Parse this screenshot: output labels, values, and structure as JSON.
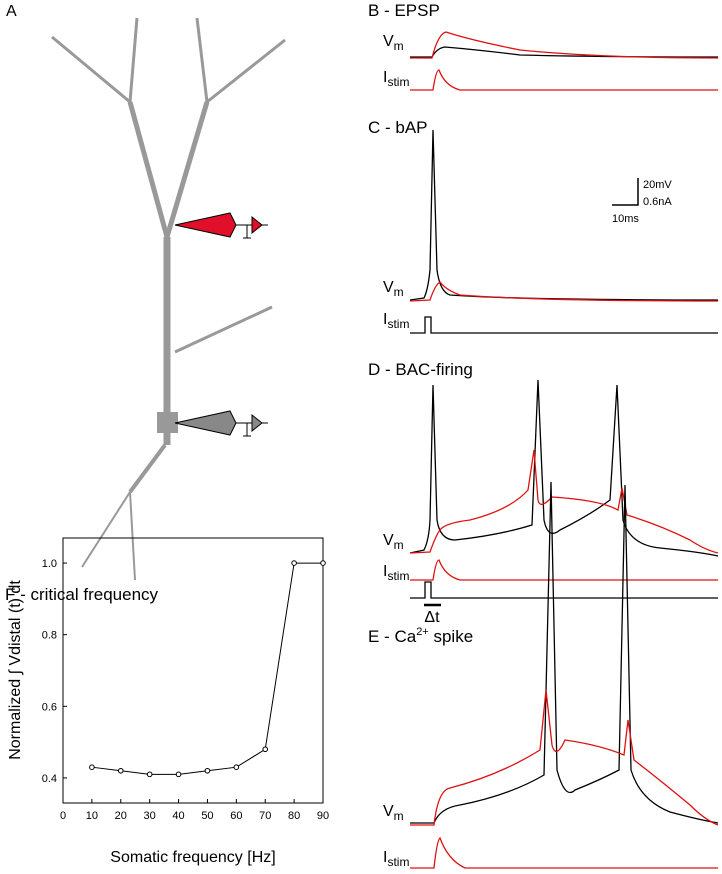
{
  "panels": {
    "a": {
      "label": "A"
    },
    "b": {
      "label": "B - EPSP",
      "vm": "V",
      "vm_sub": "m",
      "istim": "I",
      "istim_sub": "stim"
    },
    "c": {
      "label": "C - bAP",
      "vm": "V",
      "vm_sub": "m",
      "istim": "I",
      "istim_sub": "stim"
    },
    "d": {
      "label": "D - BAC-firing",
      "vm": "V",
      "vm_sub": "m",
      "istim": "I",
      "istim_sub": "stim",
      "delta_t": "Δt"
    },
    "e": {
      "label": "E - Ca",
      "label_sup": "2+",
      "label_end": " spike",
      "vm": "V",
      "vm_sub": "m",
      "istim": "I",
      "istim_sub": "stim"
    }
  },
  "scale_bar": {
    "v": "20mV",
    "i": "0.6nA",
    "t": "10ms"
  },
  "chart_data": {
    "type": "line",
    "title": "F - critical frequency",
    "x_label": "Somatic frequency [Hz]",
    "y_label": "Normalized ∫ Vdistal (t) dt",
    "x": [
      10,
      20,
      30,
      40,
      50,
      60,
      70,
      80,
      90
    ],
    "values": [
      0.43,
      0.42,
      0.41,
      0.41,
      0.42,
      0.43,
      0.48,
      1.0,
      1.0
    ],
    "color": "#000000",
    "xlim": [
      0,
      90
    ],
    "ylim": [
      0.33,
      1.07
    ],
    "xticks": [
      0,
      10,
      20,
      30,
      40,
      50,
      60,
      70,
      80,
      90
    ],
    "yticks": [
      0.4,
      0.6,
      0.8,
      {
        "value": 1,
        "label": "1.0"
      }
    ]
  }
}
